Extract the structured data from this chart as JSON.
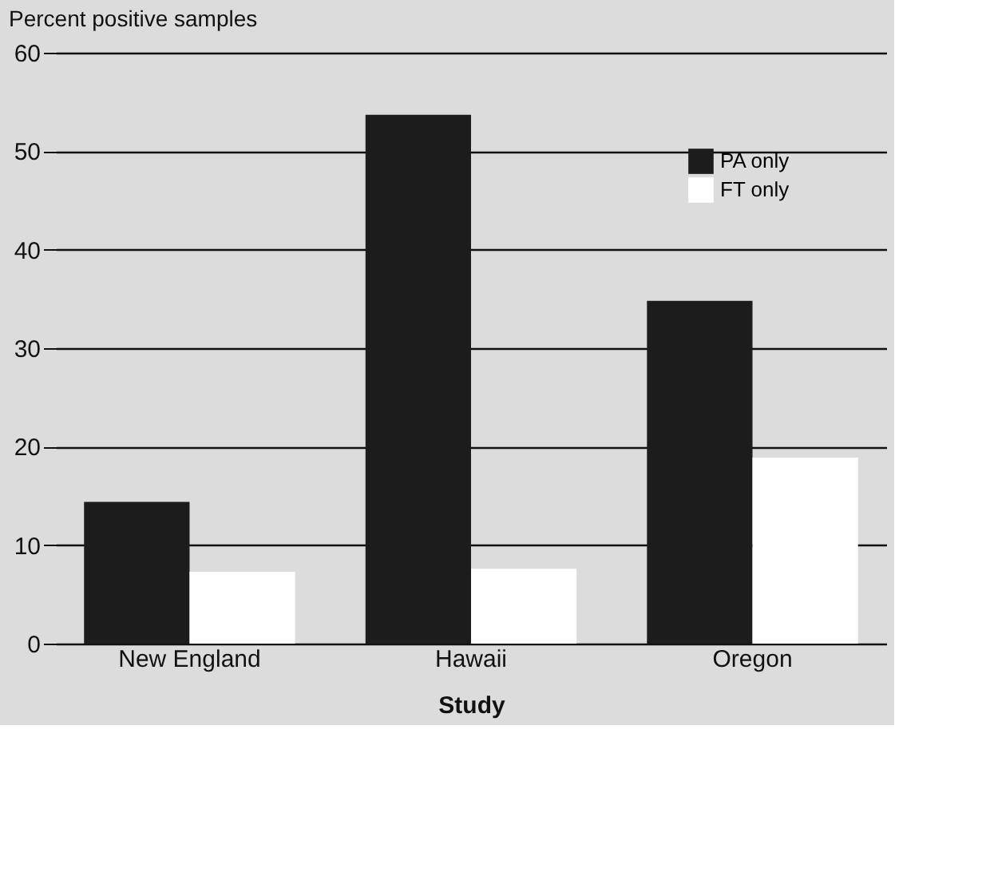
{
  "chart_data": {
    "type": "bar",
    "ylabel": "Percent positive samples",
    "xlabel": "Study",
    "categories": [
      "New England",
      "Hawaii",
      "Oregon"
    ],
    "series": [
      {
        "name": "PA only",
        "color": "#1c1c1c",
        "values": [
          14.4,
          53.7,
          34.8
        ]
      },
      {
        "name": "FT only",
        "color": "#ffffff",
        "values": [
          7.3,
          7.6,
          18.9
        ]
      }
    ],
    "ylim": [
      0,
      60
    ],
    "yticks": [
      0,
      10,
      20,
      30,
      40,
      50,
      60
    ],
    "grid": "y",
    "legend": "top right"
  }
}
